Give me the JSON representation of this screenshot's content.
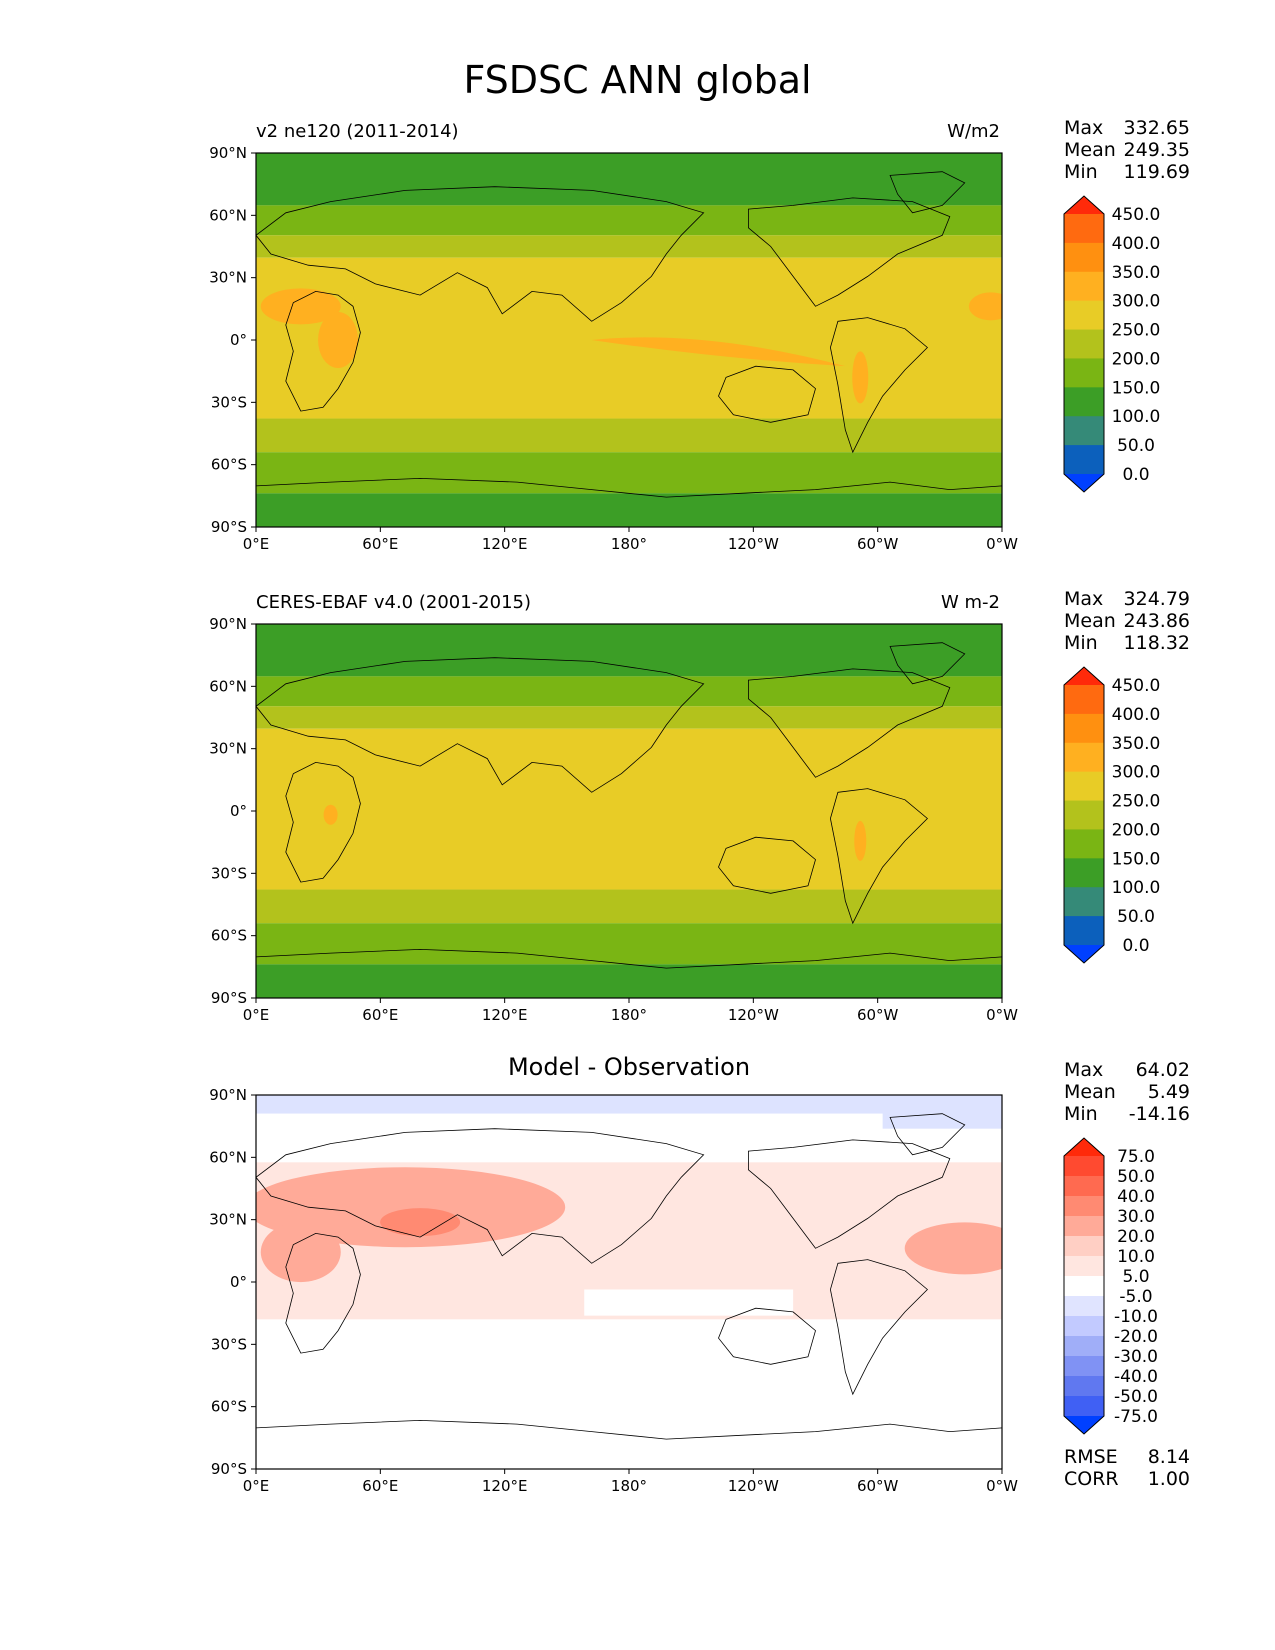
{
  "title": "FSDSC ANN global",
  "x_ticks": [
    "0°E",
    "60°E",
    "120°E",
    "180°",
    "120°W",
    "60°W",
    "0°W"
  ],
  "y_ticks": [
    "90°N",
    "60°N",
    "30°N",
    "0°",
    "30°S",
    "60°S",
    "90°S"
  ],
  "stat_labels": {
    "max": "Max",
    "mean": "Mean",
    "min": "Min",
    "rmse": "RMSE",
    "corr": "CORR"
  },
  "panels": [
    {
      "left_label": "v2 ne120 (2011-2014)",
      "right_label": "W/m2",
      "stats": {
        "max": "332.65",
        "mean": "249.35",
        "min": "119.69"
      },
      "colorbar": {
        "ticks": [
          "450.0",
          "400.0",
          "350.0",
          "300.0",
          "250.0",
          "200.0",
          "150.0",
          "100.0",
          "50.0",
          "0.0"
        ],
        "colors": [
          "#ff2a0a",
          "#ff6a10",
          "#ff9010",
          "#ffb020",
          "#e8cc26",
          "#b3c21c",
          "#7ab514",
          "#3c9e26",
          "#358a78",
          "#0c60bc",
          "#0040ff"
        ]
      }
    },
    {
      "left_label": "CERES-EBAF v4.0 (2001-2015)",
      "right_label": "W m-2",
      "stats": {
        "max": "324.79",
        "mean": "243.86",
        "min": "118.32"
      },
      "colorbar": {
        "ticks": [
          "450.0",
          "400.0",
          "350.0",
          "300.0",
          "250.0",
          "200.0",
          "150.0",
          "100.0",
          "50.0",
          "0.0"
        ],
        "colors": [
          "#ff2a0a",
          "#ff6a10",
          "#ff9010",
          "#ffb020",
          "#e8cc26",
          "#b3c21c",
          "#7ab514",
          "#3c9e26",
          "#358a78",
          "#0c60bc",
          "#0040ff"
        ]
      }
    },
    {
      "center_title": "Model - Observation",
      "stats": {
        "max": "64.02",
        "mean": "5.49",
        "min": "-14.16"
      },
      "metrics": {
        "rmse": "8.14",
        "corr": "1.00"
      },
      "colorbar": {
        "ticks": [
          "75.0",
          "50.0",
          "40.0",
          "30.0",
          "20.0",
          "10.0",
          "5.0",
          "-5.0",
          "-10.0",
          "-20.0",
          "-30.0",
          "-40.0",
          "-50.0",
          "-75.0"
        ],
        "colors": [
          "#ff2a0a",
          "#ff4a30",
          "#ff6a50",
          "#ff8a72",
          "#ffaa98",
          "#ffcfc4",
          "#ffe6e0",
          "#ffffff",
          "#e0e4ff",
          "#c2caff",
          "#a0aef8",
          "#8092f4",
          "#6078f0",
          "#4060f4",
          "#0040ff"
        ]
      }
    }
  ]
}
